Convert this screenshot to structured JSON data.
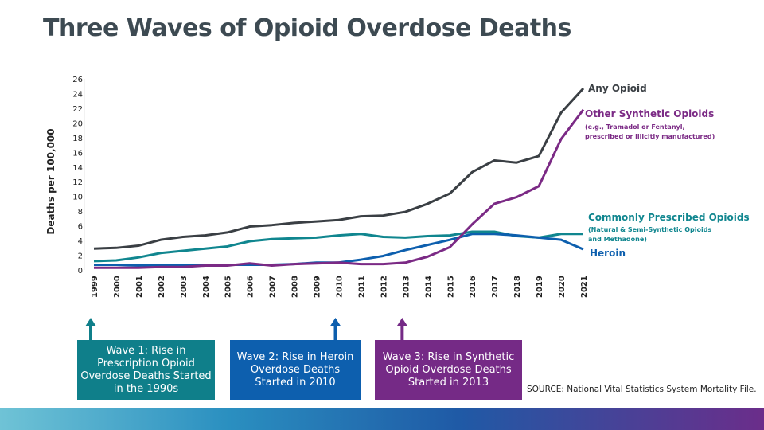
{
  "title": "Three Waves of Opioid Overdose Deaths",
  "chart_data": {
    "type": "line",
    "ylabel": "Deaths per 100,000",
    "ylim": [
      0,
      26
    ],
    "yticks": [
      0,
      2,
      4,
      6,
      8,
      10,
      12,
      14,
      16,
      18,
      20,
      22,
      24,
      26
    ],
    "x": [
      "1999",
      "2000",
      "2001",
      "2002",
      "2003",
      "2004",
      "2005",
      "2006",
      "2007",
      "2008",
      "2009",
      "2010",
      "2011",
      "2012",
      "2013",
      "2014",
      "2015",
      "2016",
      "2017",
      "2018",
      "2019",
      "2020",
      "2021"
    ],
    "series": [
      {
        "name": "Any Opioid",
        "color": "#3a3f44",
        "values": [
          2.9,
          3.0,
          3.3,
          4.1,
          4.5,
          4.7,
          5.1,
          5.9,
          6.1,
          6.4,
          6.6,
          6.8,
          7.3,
          7.4,
          7.9,
          9.0,
          10.4,
          13.3,
          14.9,
          14.6,
          15.5,
          21.4,
          24.7
        ]
      },
      {
        "name": "Other Synthetic Opioids",
        "note": "(e.g., Tramadol or Fentanyl, prescribed or illicitly manufactured)",
        "color": "#7b2a85",
        "values": [
          0.3,
          0.3,
          0.3,
          0.4,
          0.4,
          0.6,
          0.6,
          0.9,
          0.6,
          0.8,
          0.9,
          1.0,
          0.8,
          0.8,
          1.0,
          1.8,
          3.1,
          6.2,
          9.0,
          9.9,
          11.4,
          17.8,
          21.8
        ]
      },
      {
        "name": "Commonly Prescribed Opioids",
        "note": "(Natural & Semi-Synthetic Opioids and Methadone)",
        "color": "#10868f",
        "values": [
          1.2,
          1.3,
          1.7,
          2.3,
          2.6,
          2.9,
          3.2,
          3.9,
          4.2,
          4.3,
          4.4,
          4.7,
          4.9,
          4.5,
          4.4,
          4.6,
          4.7,
          5.2,
          5.2,
          4.6,
          4.4,
          4.9,
          4.9
        ]
      },
      {
        "name": "Heroin",
        "color": "#0d5fae",
        "values": [
          0.7,
          0.7,
          0.6,
          0.7,
          0.7,
          0.6,
          0.7,
          0.7,
          0.7,
          0.8,
          1.0,
          1.0,
          1.4,
          1.9,
          2.7,
          3.4,
          4.1,
          4.9,
          4.9,
          4.7,
          4.4,
          4.1,
          2.8
        ]
      }
    ]
  },
  "labels": {
    "any": "Any Opioid",
    "synthetic": "Other Synthetic Opioids",
    "synthetic_note1": "(e.g., Tramadol or Fentanyl,",
    "synthetic_note2": "prescribed or illicitly manufactured)",
    "rx": "Commonly Prescribed Opioids",
    "rx_note1": "(Natural & Semi-Synthetic Opioids",
    "rx_note2": "and Methadone)",
    "heroin": "Heroin"
  },
  "waves": [
    {
      "text": "Wave 1: Rise in Prescription Opioid Overdose Deaths Started in the 1990s",
      "color": "#0f7f8a",
      "year": "1999"
    },
    {
      "text": "Wave 2: Rise in Heroin Overdose Deaths Started in 2010",
      "color": "#0d5fae",
      "year": "2010"
    },
    {
      "text": "Wave 3: Rise in Synthetic Opioid Overdose Deaths Started in 2013",
      "color": "#752a86",
      "year": "2013"
    }
  ],
  "source": "SOURCE: National Vital Statistics System Mortality File."
}
